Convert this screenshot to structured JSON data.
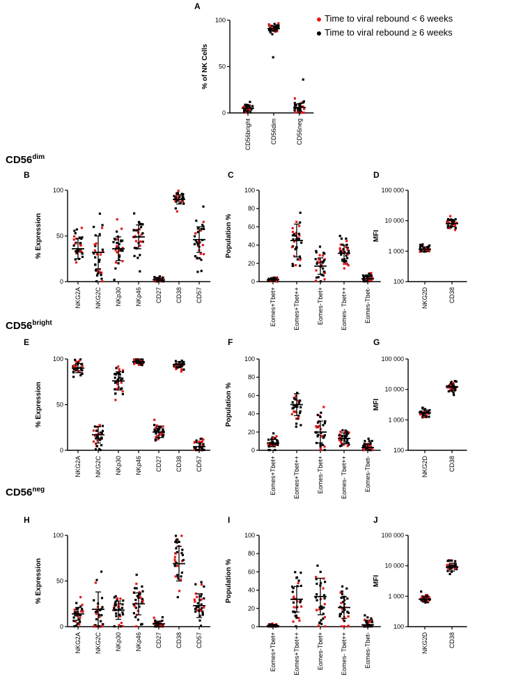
{
  "legend": {
    "lt": {
      "label": "Time to viral rebound < 6 weeks",
      "color": "#e31a1c"
    },
    "ge": {
      "label": "Time to viral rebound ≥ 6 weeks",
      "color": "#000000"
    }
  },
  "sections": {
    "dim": {
      "base": "CD56",
      "sup": "dim"
    },
    "bright": {
      "base": "CD56",
      "sup": "bright"
    },
    "neg": {
      "base": "CD56",
      "sup": "neg"
    }
  },
  "chart_data": [
    {
      "id": "A",
      "type": "scatter",
      "ylabel": "% of NK Cells",
      "yscale": "linear",
      "ylim": [
        0,
        100
      ],
      "yticks": [
        0,
        50,
        100
      ],
      "categories": [
        "CD56bright",
        "CD56dim",
        "CD56neg"
      ],
      "means": [
        5,
        91,
        6
      ],
      "sd": [
        3,
        3,
        4
      ],
      "outliers": [
        [],
        [
          60
        ],
        [
          36
        ]
      ]
    },
    {
      "id": "B",
      "type": "scatter",
      "ylabel": "% Expression",
      "yscale": "linear",
      "ylim": [
        0,
        100
      ],
      "yticks": [
        0,
        50,
        100
      ],
      "categories": [
        "NKG2A",
        "NKG2C",
        "NKp30",
        "NKp46",
        "CD27",
        "CD38",
        "CD57"
      ],
      "means": [
        36,
        32,
        36,
        49,
        2,
        90,
        46
      ],
      "sd": [
        11,
        18,
        13,
        13,
        1.5,
        5,
        14
      ]
    },
    {
      "id": "C",
      "type": "scatter",
      "ylabel": "Population %",
      "yscale": "linear",
      "ylim": [
        0,
        100
      ],
      "yticks": [
        0,
        20,
        40,
        60,
        80,
        100
      ],
      "categories": [
        "Eomes+Tbet+",
        "Eomes+Tbet++",
        "Eomes-Tbet+",
        "Eomes- Tbet++",
        "Eomes-Tbet-"
      ],
      "means": [
        2,
        45,
        17,
        31,
        3
      ],
      "sd": [
        1.5,
        18,
        9,
        9,
        3
      ]
    },
    {
      "id": "D",
      "type": "scatter",
      "ylabel": "MFI",
      "yscale": "log",
      "ylim": [
        100,
        100000
      ],
      "yticks": [
        100,
        1000,
        10000,
        100000
      ],
      "categories": [
        "NKG2D",
        "CD38"
      ],
      "means": [
        1150,
        8000
      ],
      "sd": [
        0.08,
        0.1
      ]
    },
    {
      "id": "E",
      "type": "scatter",
      "ylabel": "% Expression",
      "yscale": "linear",
      "ylim": [
        0,
        100
      ],
      "yticks": [
        0,
        50,
        100
      ],
      "categories": [
        "NKG2A",
        "NKG2C",
        "NKp30",
        "NKp46",
        "CD27",
        "CD38",
        "CD57"
      ],
      "means": [
        90,
        17,
        76,
        97,
        20,
        94,
        4
      ],
      "sd": [
        5,
        9,
        10,
        2,
        6,
        3,
        4
      ]
    },
    {
      "id": "F",
      "type": "scatter",
      "ylabel": "Population %",
      "yscale": "linear",
      "ylim": [
        0,
        100
      ],
      "yticks": [
        0,
        20,
        40,
        60,
        80,
        100
      ],
      "categories": [
        "Eomes+Tbet+",
        "Eomes+Tbet++",
        "Eomes-Tbet+",
        "Eomes- Tbet++",
        "Eomes-Tbet-"
      ],
      "means": [
        8,
        50,
        20,
        13,
        3
      ],
      "sd": [
        4,
        12,
        12,
        6,
        4
      ]
    },
    {
      "id": "G",
      "type": "scatter",
      "ylabel": "MFI",
      "yscale": "log",
      "ylim": [
        100,
        100000
      ],
      "yticks": [
        100,
        1000,
        10000,
        100000
      ],
      "categories": [
        "NKG2D",
        "CD38"
      ],
      "means": [
        1700,
        12000
      ],
      "sd": [
        0.1,
        0.1
      ]
    },
    {
      "id": "H",
      "type": "scatter",
      "ylabel": "% Expression",
      "yscale": "linear",
      "ylim": [
        0,
        100
      ],
      "yticks": [
        0,
        50,
        100
      ],
      "categories": [
        "NKG2A",
        "NKG2C",
        "NKp30",
        "NKp46",
        "CD27",
        "CD38",
        "CD57"
      ],
      "means": [
        14,
        19,
        18,
        25,
        3,
        69,
        23
      ],
      "sd": [
        7,
        19,
        10,
        12,
        3,
        19,
        13
      ]
    },
    {
      "id": "I",
      "type": "scatter",
      "ylabel": "Population %",
      "yscale": "linear",
      "ylim": [
        0,
        100
      ],
      "yticks": [
        0,
        20,
        40,
        60,
        80,
        100
      ],
      "categories": [
        "Eomes+Tbet+",
        "Eomes+Tbet++",
        "Eomes-Tbet+",
        "Eomes- Tbet++",
        "Eomes-Tbet-"
      ],
      "means": [
        1,
        30,
        33,
        21,
        2
      ],
      "sd": [
        1.5,
        14,
        20,
        12,
        5
      ]
    },
    {
      "id": "J",
      "type": "scatter",
      "ylabel": "MFI",
      "yscale": "log",
      "ylim": [
        100,
        100000
      ],
      "yticks": [
        100,
        1000,
        10000,
        100000
      ],
      "categories": [
        "NKG2D",
        "CD38"
      ],
      "means": [
        800,
        9000
      ],
      "sd": [
        0.1,
        0.13
      ]
    }
  ]
}
